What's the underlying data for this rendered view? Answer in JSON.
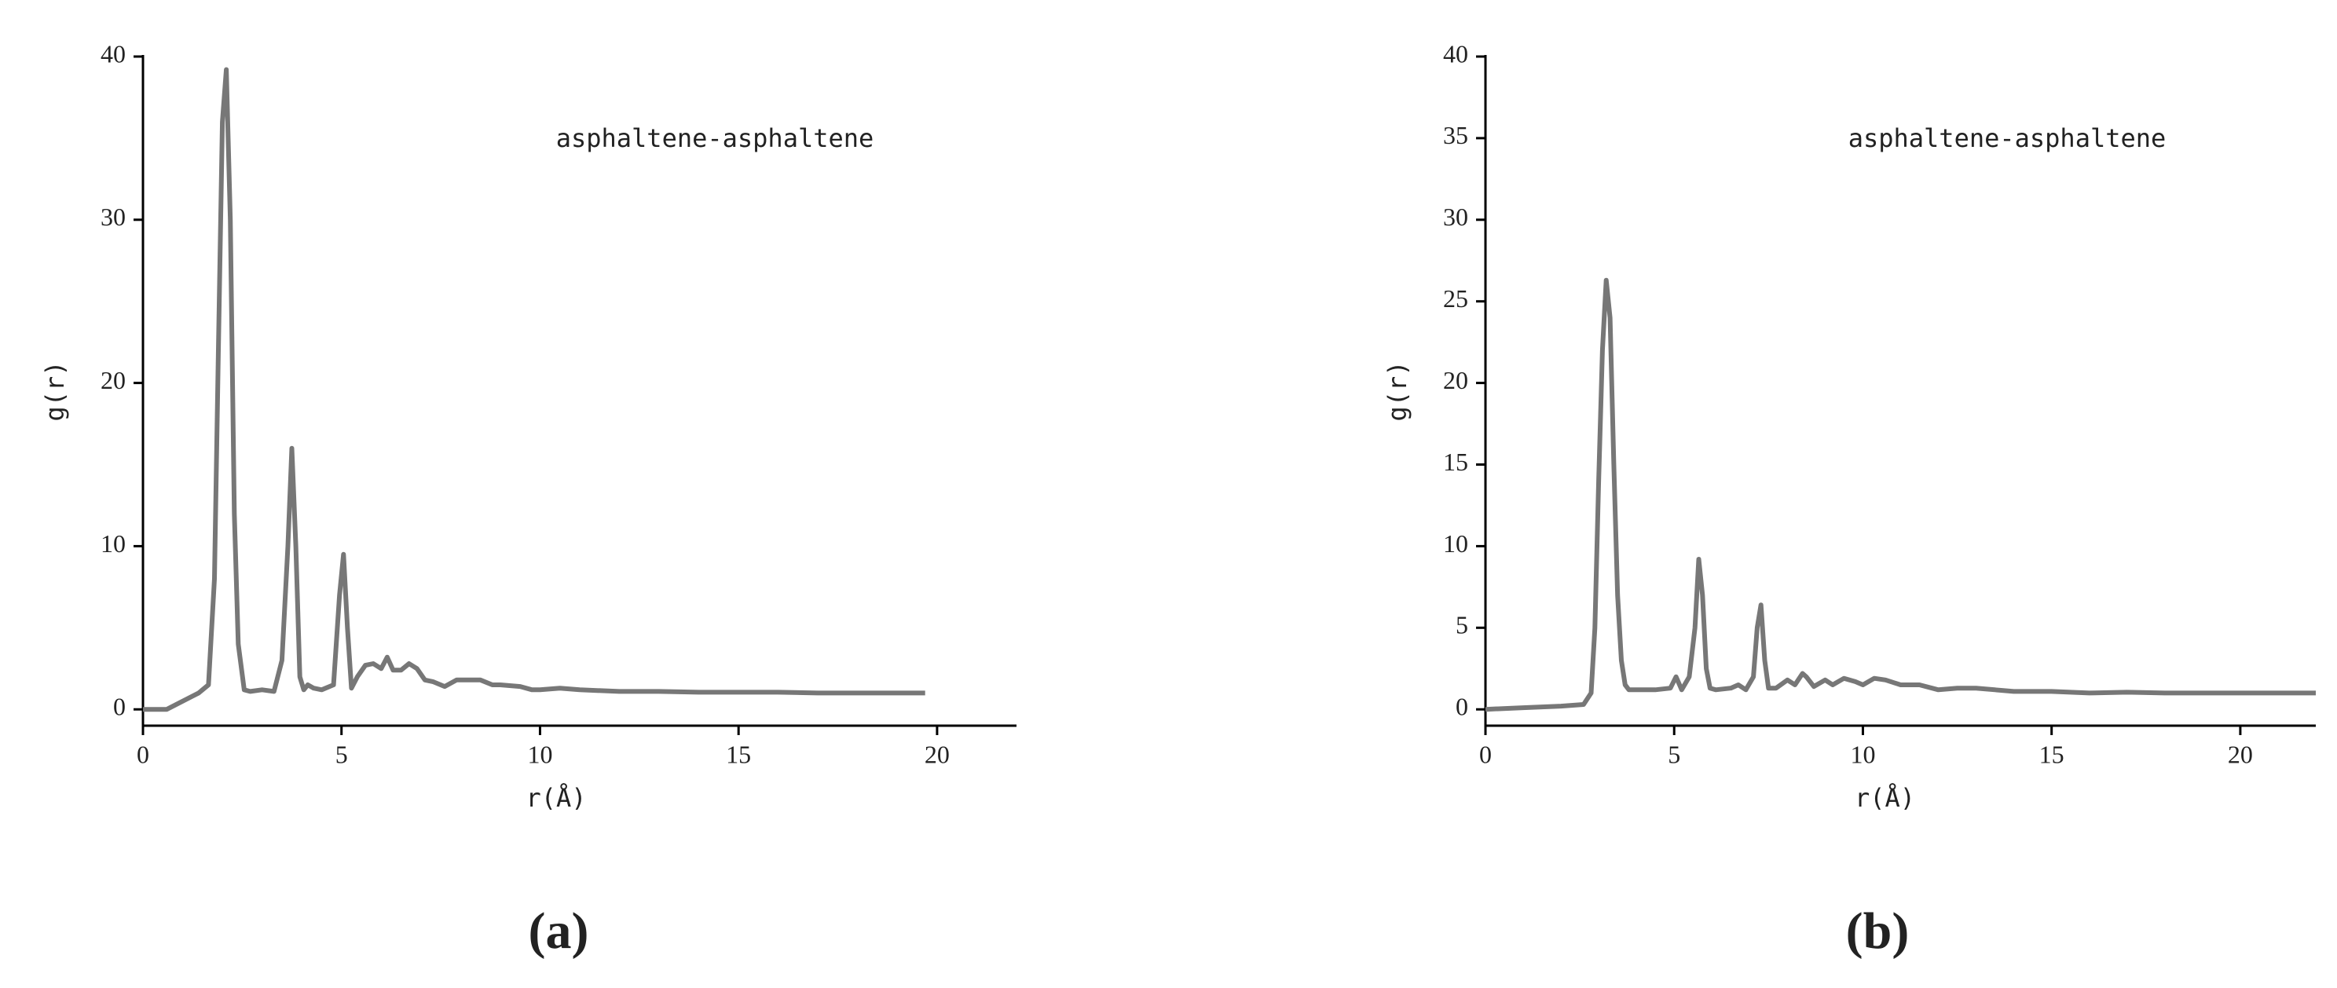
{
  "chart_data": [
    {
      "type": "line",
      "caption": "(a)",
      "annotation": "asphaltene-asphaltene",
      "xlabel": "r(Å)",
      "ylabel": "g(r)",
      "color": "#777777",
      "x": [
        0,
        0.6,
        1.0,
        1.4,
        1.65,
        1.8,
        1.9,
        2.0,
        2.1,
        2.2,
        2.3,
        2.4,
        2.55,
        2.7,
        3.0,
        3.3,
        3.5,
        3.65,
        3.75,
        3.85,
        3.95,
        4.05,
        4.15,
        4.3,
        4.5,
        4.8,
        4.95,
        5.05,
        5.15,
        5.25,
        5.4,
        5.6,
        5.8,
        6.0,
        6.15,
        6.3,
        6.5,
        6.7,
        6.9,
        7.1,
        7.3,
        7.6,
        7.9,
        8.0,
        8.5,
        8.8,
        9.0,
        9.5,
        9.8,
        10.0,
        10.5,
        11,
        12,
        13,
        14,
        15,
        16,
        17,
        18,
        19,
        19.7
      ],
      "values": [
        0,
        0,
        0.5,
        1,
        1.5,
        8,
        22,
        36,
        39.2,
        30,
        12,
        4,
        1.2,
        1.1,
        1.2,
        1.1,
        3,
        10,
        16,
        10,
        2,
        1.2,
        1.5,
        1.3,
        1.2,
        1.5,
        7,
        9.5,
        5,
        1.3,
        2,
        2.7,
        2.8,
        2.5,
        3.2,
        2.4,
        2.4,
        2.8,
        2.5,
        1.8,
        1.7,
        1.4,
        1.8,
        1.8,
        1.8,
        1.5,
        1.5,
        1.4,
        1.2,
        1.2,
        1.3,
        1.2,
        1.1,
        1.1,
        1.05,
        1.05,
        1.05,
        1.0,
        1.0,
        1.0,
        1.0
      ],
      "xlim": [
        0,
        22
      ],
      "ylim": [
        -1,
        40
      ],
      "xticks": [
        0,
        5,
        10,
        15,
        20
      ],
      "yticks": [
        0,
        10,
        20,
        30,
        40
      ]
    },
    {
      "type": "line",
      "caption": "(b)",
      "annotation": "asphaltene-asphaltene",
      "xlabel": "r(Å)",
      "ylabel": "g(r)",
      "color": "#777777",
      "x": [
        0,
        1,
        2,
        2.6,
        2.8,
        2.9,
        3.0,
        3.1,
        3.2,
        3.3,
        3.4,
        3.5,
        3.6,
        3.7,
        3.8,
        4.0,
        4.5,
        4.9,
        5.05,
        5.2,
        5.4,
        5.55,
        5.65,
        5.75,
        5.85,
        5.95,
        6.1,
        6.5,
        6.7,
        6.9,
        7.1,
        7.2,
        7.3,
        7.4,
        7.5,
        7.7,
        8.0,
        8.2,
        8.4,
        8.5,
        8.7,
        9.0,
        9.2,
        9.5,
        9.8,
        10.0,
        10.3,
        10.6,
        11,
        11.5,
        12,
        12.5,
        13,
        14,
        15,
        16,
        17,
        18,
        19,
        20,
        21,
        22
      ],
      "values": [
        0,
        0.1,
        0.2,
        0.3,
        1,
        5,
        14,
        22,
        26.3,
        24,
        15,
        7,
        3,
        1.5,
        1.2,
        1.2,
        1.2,
        1.3,
        2,
        1.2,
        2,
        5,
        9.2,
        7,
        2.5,
        1.3,
        1.2,
        1.3,
        1.5,
        1.2,
        2,
        5,
        6.4,
        3,
        1.3,
        1.3,
        1.8,
        1.5,
        2.2,
        2.0,
        1.4,
        1.8,
        1.5,
        1.9,
        1.7,
        1.5,
        1.9,
        1.8,
        1.5,
        1.5,
        1.2,
        1.3,
        1.3,
        1.1,
        1.1,
        1.0,
        1.05,
        1.0,
        1.0,
        1.0,
        1.0,
        1.0
      ],
      "xlim": [
        0,
        22
      ],
      "ylim": [
        -1,
        40
      ],
      "xticks": [
        0,
        5,
        10,
        15,
        20
      ],
      "yticks": [
        0,
        5,
        10,
        15,
        20,
        25,
        30,
        35,
        40
      ]
    }
  ]
}
